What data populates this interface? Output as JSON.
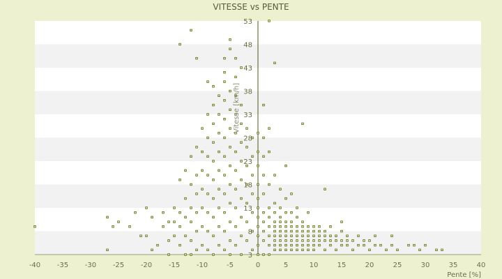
{
  "chart_data": {
    "type": "scatter",
    "title": "VITESSE vs PENTE",
    "xlabel": "Pente [%]",
    "ylabel": "Vitesse [km/h]",
    "xlim": [
      -40,
      40
    ],
    "ylim": [
      3,
      53
    ],
    "x_ticks": [
      -40,
      -35,
      -30,
      -25,
      -20,
      -15,
      -10,
      -5,
      0,
      5,
      10,
      15,
      20,
      25,
      30,
      35,
      40
    ],
    "y_ticks": [
      3,
      8,
      13,
      18,
      23,
      28,
      33,
      38,
      43,
      48,
      53
    ],
    "grid": "horizontal alternating bands",
    "legend": "none",
    "colors": {
      "background": "#eef1cf",
      "plot_band_light": "#ffffff",
      "plot_band_dark": "#f2f2f2",
      "marker_fill": "#e8ecb8",
      "marker_stroke": "#5a6a10",
      "axis": "#4a5a10"
    },
    "series": [
      {
        "points": [
          [
            -40,
            9
          ],
          [
            -27,
            11
          ],
          [
            -27,
            4
          ],
          [
            -26,
            9
          ],
          [
            -25,
            10
          ],
          [
            -23,
            9
          ],
          [
            -22,
            12
          ],
          [
            -21,
            7
          ],
          [
            -21,
            1
          ],
          [
            -20,
            13
          ],
          [
            -20,
            7
          ],
          [
            -19,
            11
          ],
          [
            -19,
            4
          ],
          [
            -18,
            5
          ],
          [
            -17,
            12
          ],
          [
            -17,
            9
          ],
          [
            -16,
            10
          ],
          [
            -16,
            6
          ],
          [
            -16,
            3
          ],
          [
            -15,
            13
          ],
          [
            -15,
            10
          ],
          [
            -15,
            7
          ],
          [
            -14,
            19
          ],
          [
            -14,
            12
          ],
          [
            -14,
            9
          ],
          [
            -14,
            5
          ],
          [
            -13,
            21
          ],
          [
            -13,
            15
          ],
          [
            -13,
            11
          ],
          [
            -13,
            7
          ],
          [
            -13,
            3
          ],
          [
            -12,
            24
          ],
          [
            -12,
            18
          ],
          [
            -12,
            13
          ],
          [
            -12,
            10
          ],
          [
            -12,
            6
          ],
          [
            -12,
            3
          ],
          [
            -11,
            26
          ],
          [
            -11,
            20
          ],
          [
            -11,
            16
          ],
          [
            -11,
            12
          ],
          [
            -11,
            8
          ],
          [
            -11,
            4
          ],
          [
            -10,
            30
          ],
          [
            -10,
            25
          ],
          [
            -10,
            21
          ],
          [
            -10,
            17
          ],
          [
            -10,
            13
          ],
          [
            -10,
            9
          ],
          [
            -10,
            5
          ],
          [
            -9,
            33
          ],
          [
            -9,
            28
          ],
          [
            -9,
            24
          ],
          [
            -9,
            20
          ],
          [
            -9,
            16
          ],
          [
            -9,
            12
          ],
          [
            -9,
            8
          ],
          [
            -9,
            4
          ],
          [
            -8,
            35
          ],
          [
            -8,
            31
          ],
          [
            -8,
            27
          ],
          [
            -8,
            23
          ],
          [
            -8,
            19
          ],
          [
            -8,
            15
          ],
          [
            -8,
            11
          ],
          [
            -8,
            7
          ],
          [
            -8,
            3
          ],
          [
            -7,
            37
          ],
          [
            -7,
            33
          ],
          [
            -7,
            29
          ],
          [
            -7,
            25
          ],
          [
            -7,
            21
          ],
          [
            -7,
            17
          ],
          [
            -7,
            13
          ],
          [
            -7,
            9
          ],
          [
            -7,
            5
          ],
          [
            -6,
            40
          ],
          [
            -6,
            36
          ],
          [
            -6,
            32
          ],
          [
            -6,
            28
          ],
          [
            -6,
            24
          ],
          [
            -6,
            20
          ],
          [
            -6,
            16
          ],
          [
            -6,
            12
          ],
          [
            -6,
            8
          ],
          [
            -6,
            4
          ],
          [
            -5,
            38
          ],
          [
            -5,
            34
          ],
          [
            -5,
            30
          ],
          [
            -5,
            26
          ],
          [
            -5,
            22
          ],
          [
            -5,
            18
          ],
          [
            -5,
            14
          ],
          [
            -5,
            10
          ],
          [
            -5,
            6
          ],
          [
            -5,
            3
          ],
          [
            -4,
            37
          ],
          [
            -4,
            33
          ],
          [
            -4,
            29
          ],
          [
            -4,
            25
          ],
          [
            -4,
            21
          ],
          [
            -4,
            17
          ],
          [
            -4,
            13
          ],
          [
            -4,
            9
          ],
          [
            -4,
            5
          ],
          [
            -3,
            35
          ],
          [
            -3,
            31
          ],
          [
            -3,
            27
          ],
          [
            -3,
            23
          ],
          [
            -3,
            19
          ],
          [
            -3,
            15
          ],
          [
            -3,
            11
          ],
          [
            -3,
            7
          ],
          [
            -3,
            3
          ],
          [
            -2,
            30
          ],
          [
            -2,
            26
          ],
          [
            -2,
            22
          ],
          [
            -2,
            18
          ],
          [
            -2,
            14
          ],
          [
            -2,
            10
          ],
          [
            -2,
            6
          ],
          [
            -1,
            28
          ],
          [
            -1,
            24
          ],
          [
            -1,
            20
          ],
          [
            -1,
            16
          ],
          [
            -1,
            12
          ],
          [
            -1,
            8
          ],
          [
            -1,
            4
          ],
          [
            -12,
            51
          ],
          [
            -14,
            48
          ],
          [
            -11,
            45
          ],
          [
            -9,
            40
          ],
          [
            -8,
            39
          ],
          [
            -6,
            45
          ],
          [
            -5,
            47
          ],
          [
            -5,
            49
          ],
          [
            -4,
            45
          ],
          [
            -3,
            43
          ],
          [
            -4,
            41
          ],
          [
            -6,
            42
          ],
          [
            0,
            3
          ],
          [
            0,
            5
          ],
          [
            0,
            7
          ],
          [
            0,
            9
          ],
          [
            0,
            11
          ],
          [
            0,
            13
          ],
          [
            0,
            15
          ],
          [
            0,
            18
          ],
          [
            0,
            22
          ],
          [
            0,
            25
          ],
          [
            0,
            29
          ],
          [
            1,
            3
          ],
          [
            1,
            6
          ],
          [
            1,
            8
          ],
          [
            1,
            10
          ],
          [
            1,
            12
          ],
          [
            1,
            16
          ],
          [
            1,
            20
          ],
          [
            1,
            24
          ],
          [
            1,
            28
          ],
          [
            1,
            35
          ],
          [
            2,
            3
          ],
          [
            2,
            5
          ],
          [
            2,
            7
          ],
          [
            2,
            9
          ],
          [
            2,
            11
          ],
          [
            2,
            13
          ],
          [
            2,
            18
          ],
          [
            2,
            25
          ],
          [
            2,
            30
          ],
          [
            3,
            4
          ],
          [
            3,
            5
          ],
          [
            3,
            6
          ],
          [
            3,
            7
          ],
          [
            3,
            8
          ],
          [
            3,
            9
          ],
          [
            3,
            10
          ],
          [
            3,
            12
          ],
          [
            3,
            14
          ],
          [
            3,
            20
          ],
          [
            4,
            4
          ],
          [
            4,
            5
          ],
          [
            4,
            6
          ],
          [
            4,
            7
          ],
          [
            4,
            8
          ],
          [
            4,
            9
          ],
          [
            4,
            10
          ],
          [
            4,
            11
          ],
          [
            4,
            13
          ],
          [
            4,
            17
          ],
          [
            5,
            4
          ],
          [
            5,
            5
          ],
          [
            5,
            6
          ],
          [
            5,
            7
          ],
          [
            5,
            8
          ],
          [
            5,
            9
          ],
          [
            5,
            10
          ],
          [
            5,
            12
          ],
          [
            5,
            15
          ],
          [
            5,
            22
          ],
          [
            6,
            4
          ],
          [
            6,
            5
          ],
          [
            6,
            6
          ],
          [
            6,
            7
          ],
          [
            6,
            8
          ],
          [
            6,
            9
          ],
          [
            6,
            10
          ],
          [
            6,
            12
          ],
          [
            6,
            16
          ],
          [
            7,
            4
          ],
          [
            7,
            5
          ],
          [
            7,
            6
          ],
          [
            7,
            7
          ],
          [
            7,
            8
          ],
          [
            7,
            9
          ],
          [
            7,
            11
          ],
          [
            7,
            13
          ],
          [
            8,
            4
          ],
          [
            8,
            5
          ],
          [
            8,
            6
          ],
          [
            8,
            7
          ],
          [
            8,
            8
          ],
          [
            8,
            9
          ],
          [
            8,
            10
          ],
          [
            8,
            31
          ],
          [
            9,
            4
          ],
          [
            9,
            5
          ],
          [
            9,
            6
          ],
          [
            9,
            7
          ],
          [
            9,
            8
          ],
          [
            9,
            9
          ],
          [
            9,
            12
          ],
          [
            10,
            4
          ],
          [
            10,
            5
          ],
          [
            10,
            6
          ],
          [
            10,
            7
          ],
          [
            10,
            8
          ],
          [
            10,
            9
          ],
          [
            11,
            5
          ],
          [
            11,
            6
          ],
          [
            11,
            7
          ],
          [
            11,
            8
          ],
          [
            11,
            9
          ],
          [
            12,
            4
          ],
          [
            12,
            6
          ],
          [
            12,
            7
          ],
          [
            12,
            8
          ],
          [
            12,
            17
          ],
          [
            13,
            5
          ],
          [
            13,
            6
          ],
          [
            13,
            7
          ],
          [
            13,
            9
          ],
          [
            14,
            4
          ],
          [
            14,
            6
          ],
          [
            14,
            7
          ],
          [
            15,
            5
          ],
          [
            15,
            6
          ],
          [
            15,
            8
          ],
          [
            15,
            10
          ],
          [
            16,
            5
          ],
          [
            16,
            6
          ],
          [
            16,
            7
          ],
          [
            17,
            4
          ],
          [
            17,
            6
          ],
          [
            18,
            5
          ],
          [
            18,
            7
          ],
          [
            19,
            5
          ],
          [
            19,
            6
          ],
          [
            20,
            4
          ],
          [
            20,
            6
          ],
          [
            21,
            5
          ],
          [
            21,
            7
          ],
          [
            22,
            5
          ],
          [
            23,
            4
          ],
          [
            24,
            5
          ],
          [
            24,
            7
          ],
          [
            25,
            4
          ],
          [
            27,
            5
          ],
          [
            28,
            5
          ],
          [
            29,
            4
          ],
          [
            30,
            5
          ],
          [
            32,
            4
          ],
          [
            33,
            4
          ],
          [
            2,
            53
          ],
          [
            3,
            44
          ]
        ]
      }
    ]
  }
}
